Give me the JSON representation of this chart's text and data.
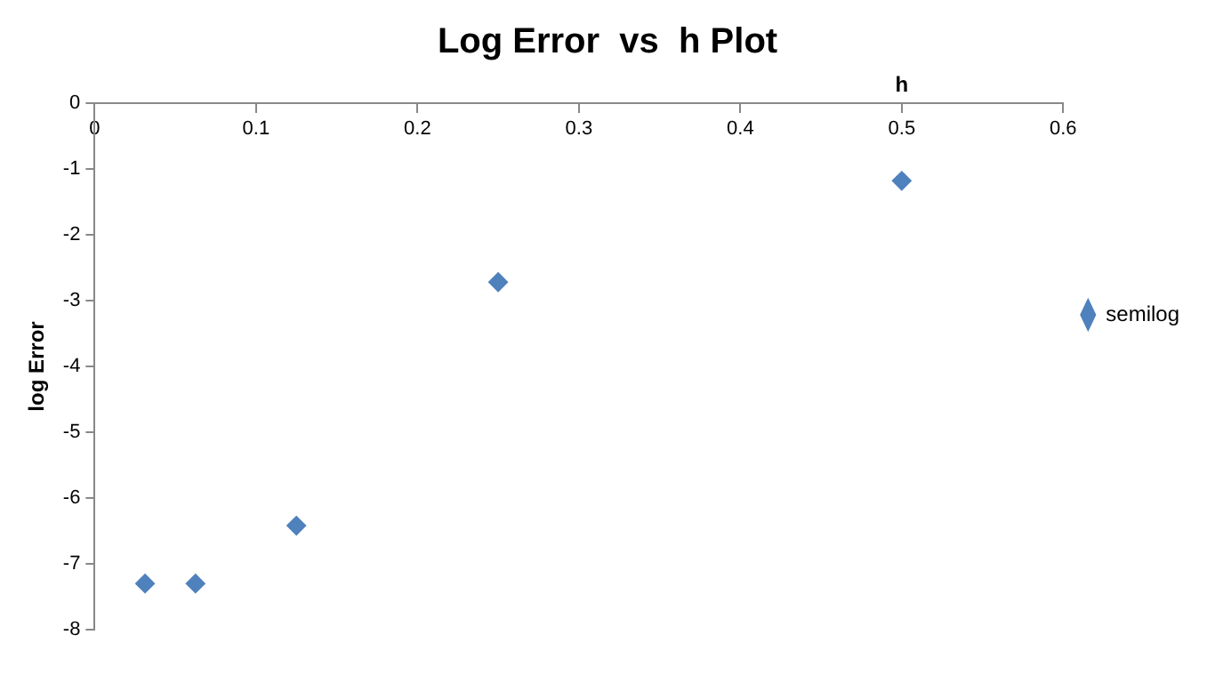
{
  "chart_data": {
    "type": "scatter",
    "title": "Log Error  vs  h Plot",
    "xlabel": "h",
    "ylabel": "log Error",
    "x": [
      0.03125,
      0.0625,
      0.125,
      0.25,
      0.5
    ],
    "series": [
      {
        "name": "semilog",
        "color": "#4f81bd",
        "values": [
          -7.3,
          -7.3,
          -6.42,
          -2.72,
          -1.18
        ]
      }
    ],
    "xlim": [
      0,
      0.6
    ],
    "xticks": [
      0,
      0.1,
      0.2,
      0.3,
      0.4,
      0.5,
      0.6
    ],
    "ylim": [
      -8,
      0
    ],
    "yticks": [
      -8,
      -7,
      -6,
      -5,
      -4,
      -3,
      -2,
      -1,
      0
    ],
    "grid": false,
    "legend": "right",
    "marker": "diamond"
  }
}
